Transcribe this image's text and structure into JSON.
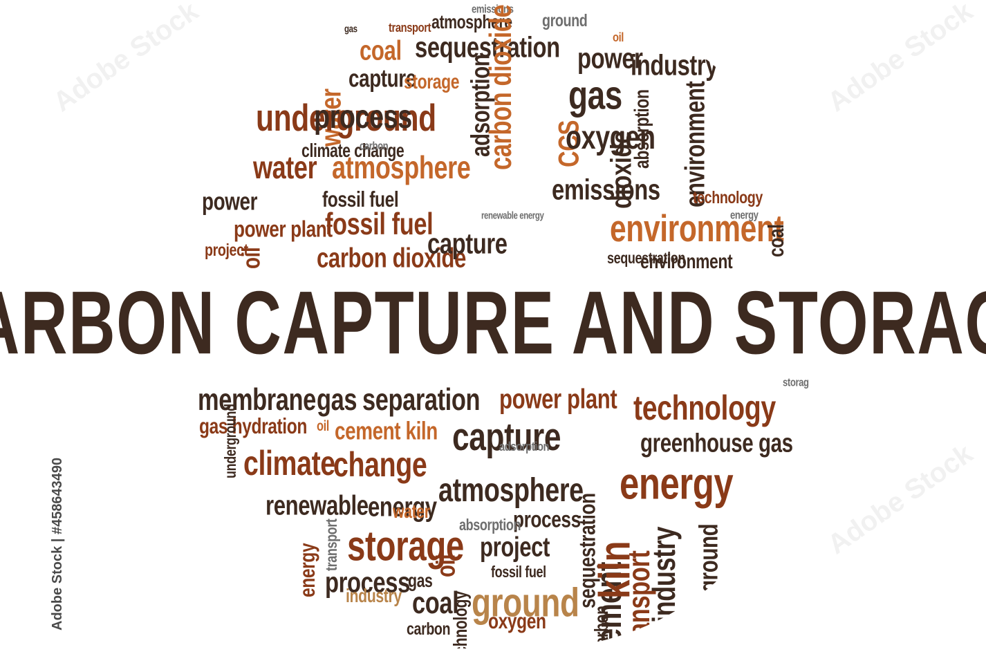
{
  "headline": "CARBON CAPTURE AND STORAGE",
  "credit": "Adobe Stock | #458643490",
  "watermark": "Adobe Stock",
  "colors": {
    "dark": "#3d2a20",
    "brown": "#8a3a18",
    "orange": "#c4672a",
    "tan": "#b8844a",
    "gray": "#6e6e6e"
  },
  "top_words": [
    "emissions",
    "atmosphere",
    "ground",
    "transport",
    "gas",
    "coal",
    "sequestration",
    "power",
    "oil",
    "water",
    "capture",
    "storage",
    "industry",
    "gas",
    "underground",
    "process",
    "carbon dioxide",
    "adsorption",
    "CCS",
    "oxygen",
    "climate change",
    "carbon",
    "dioxide",
    "absorption",
    "water",
    "atmosphere",
    "environment",
    "oil",
    "power",
    "fossil fuel",
    "emissions",
    "power plant",
    "fossil fuel",
    "environment",
    "project",
    "carbon dioxide",
    "capture",
    "sequestration",
    "environment",
    "coal",
    "technology",
    "energy",
    "renewable energy"
  ],
  "bottom_words": [
    "membrane",
    "gas",
    "separation",
    "power plant",
    "technology",
    "storage",
    "gas hydration",
    "oil",
    "cement kiln",
    "capture",
    "greenhouse gas",
    "climate",
    "change",
    "energy",
    "atmosphere",
    "renewable",
    "energy",
    "oil",
    "process",
    "storage",
    "project",
    "process",
    "gas",
    "cement",
    "industry",
    "coal",
    "ground",
    "oxygen",
    "carbon",
    "technology",
    "transport",
    "fossil fuel",
    "sequestration",
    "carbon",
    "industry",
    "water",
    "kiln",
    "absorption",
    "underground",
    "energy",
    "transport",
    "ground",
    "adsorption"
  ]
}
